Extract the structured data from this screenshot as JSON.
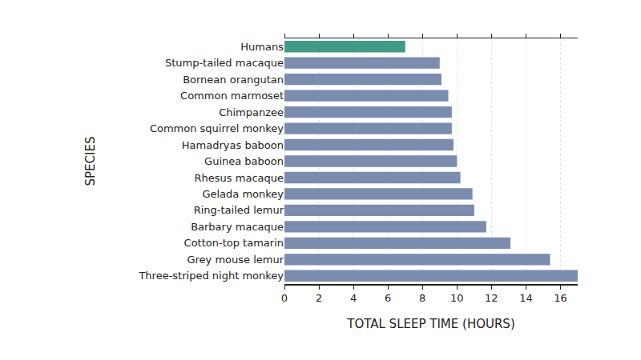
{
  "chart_data": {
    "type": "bar",
    "orientation": "horizontal",
    "x_label": "TOTAL SLEEP TIME (HOURS)",
    "y_label": "SPECIES",
    "categories": [
      "Humans",
      "Stump-tailed macaque",
      "Bornean orangutan",
      "Common marmoset",
      "Chimpanzee",
      "Common squirrel monkey",
      "Hamadryas baboon",
      "Guinea baboon",
      "Rhesus macaque",
      "Gelada monkey",
      "Ring-tailed lemur",
      "Barbary macaque",
      "Cotton-top tamarin",
      "Grey mouse lemur",
      "Three-striped night monkey"
    ],
    "values": [
      7.0,
      9.0,
      9.1,
      9.5,
      9.7,
      9.7,
      9.8,
      10.0,
      10.2,
      10.9,
      11.0,
      11.7,
      13.1,
      15.4,
      17.0
    ],
    "colors": [
      "#3f9a86",
      "#7b8cae",
      "#7b8cae",
      "#7b8cae",
      "#7b8cae",
      "#7b8cae",
      "#7b8cae",
      "#7b8cae",
      "#7b8cae",
      "#7b8cae",
      "#7b8cae",
      "#7b8cae",
      "#7b8cae",
      "#7b8cae",
      "#7b8cae"
    ],
    "xlim": [
      0,
      17
    ],
    "xticks": [
      0,
      2,
      4,
      6,
      8,
      10,
      12,
      14,
      16
    ],
    "grid": true
  }
}
